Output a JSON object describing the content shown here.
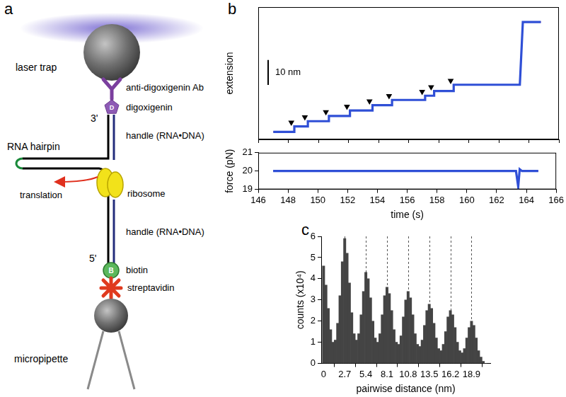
{
  "panel_labels": [
    "a",
    "b",
    "c"
  ],
  "diagram": {
    "labels": {
      "laser_trap": "laser trap",
      "antibody": "anti-digoxigenin Ab",
      "digoxigenin": "digoxigenin",
      "digoxigenin_mark": "D",
      "end_3": "3'",
      "handle_top": "handle (RNA•DNA)",
      "hairpin": "RNA hairpin",
      "translation": "translation",
      "ribosome": "ribosome",
      "handle_bottom": "handle (RNA•DNA)",
      "end_5": "5'",
      "biotin": "biotin",
      "biotin_mark": "B",
      "streptavidin": "streptavidin",
      "micropipette": "micropipette"
    }
  },
  "chart_data": [
    {
      "type": "line",
      "y_label": "extension",
      "xlim": [
        146,
        166
      ],
      "xticks": [
        146,
        148,
        150,
        152,
        154,
        156,
        158,
        160,
        162,
        164,
        166
      ],
      "ylim": [
        -3,
        50
      ],
      "tick_labels": false,
      "scale_bar": {
        "value": 10,
        "label": "10 nm"
      },
      "series": [
        {
          "color": "#2f4fd6",
          "x": [
            147.0,
            148.4,
            148.4,
            149.3,
            149.3,
            150.7,
            150.7,
            152.1,
            152.1,
            153.6,
            153.6,
            154.9,
            154.9,
            157.1,
            157.1,
            157.7,
            157.7,
            159.0,
            159.0,
            163.4,
            163.6,
            164.8
          ],
          "values": [
            0,
            0,
            2.2,
            2.2,
            4.3,
            4.3,
            6.4,
            6.4,
            8.6,
            8.6,
            10.7,
            10.7,
            12.8,
            12.8,
            14.5,
            14.5,
            16.4,
            16.4,
            18.9,
            18.9,
            44,
            44
          ]
        },
        {
          "color": "#e3262b",
          "x": [
            147.0,
            148.4,
            148.4,
            149.3,
            149.3,
            150.7,
            150.7,
            152.1,
            152.1,
            153.6,
            153.6,
            154.9,
            154.9,
            157.1,
            157.1,
            157.7,
            157.7,
            159.0,
            159.0,
            163.4,
            163.6,
            164.8
          ],
          "values": [
            0,
            0,
            2.2,
            2.2,
            4.3,
            4.3,
            6.4,
            6.4,
            8.6,
            8.6,
            10.7,
            10.7,
            12.8,
            12.8,
            14.5,
            14.5,
            16.4,
            16.4,
            18.9,
            18.9,
            44,
            44
          ]
        },
        {
          "type": "scatter",
          "marker": "triangle",
          "color": "#000000",
          "x": [
            148.2,
            149.1,
            150.5,
            151.9,
            153.4,
            154.7,
            156.9,
            157.5,
            158.8
          ],
          "values": [
            3.8,
            5.9,
            8.0,
            10.2,
            12.3,
            14.4,
            16.1,
            18.0,
            20.5
          ]
        }
      ]
    },
    {
      "type": "line",
      "x_label": "time (s)",
      "y_label": "force (pN)",
      "xlim": [
        146,
        166
      ],
      "xticks": [
        146,
        148,
        150,
        152,
        154,
        156,
        158,
        160,
        162,
        164,
        166
      ],
      "ylim": [
        19,
        21
      ],
      "yticks": [
        19,
        20,
        21
      ],
      "series": [
        {
          "color": "#2f4fd6",
          "x": [
            147.0,
            163.3,
            163.45,
            163.55,
            163.7,
            164.8
          ],
          "values": [
            20,
            20,
            19.15,
            20.1,
            20,
            20
          ]
        },
        {
          "color": "#e3262b",
          "x": [
            147.0,
            163.3,
            163.45,
            163.55,
            163.7,
            164.8
          ],
          "values": [
            20,
            20,
            19.3,
            20.05,
            20,
            20
          ]
        }
      ]
    },
    {
      "type": "histogram",
      "x_label": "pairwise distance (nm)",
      "y_label": "counts (x10⁴)",
      "color": "#444444",
      "grid": true,
      "xlim": [
        -0.3,
        21.3
      ],
      "xticks": [
        0,
        2.7,
        5.4,
        8.1,
        10.8,
        13.5,
        16.2,
        18.9
      ],
      "ylim": [
        0,
        6
      ],
      "yticks": [
        0,
        1,
        2,
        3,
        4,
        5,
        6
      ],
      "bins": [
        -0.15,
        0.15,
        0.45,
        0.75,
        1.05,
        1.35,
        1.65,
        1.95,
        2.25,
        2.55,
        2.85,
        3.15,
        3.45,
        3.75,
        4.05,
        4.35,
        4.65,
        4.95,
        5.25,
        5.55,
        5.85,
        6.15,
        6.45,
        6.75,
        7.05,
        7.35,
        7.65,
        7.95,
        8.25,
        8.55,
        8.85,
        9.15,
        9.45,
        9.75,
        10.05,
        10.35,
        10.65,
        10.95,
        11.25,
        11.55,
        11.85,
        12.15,
        12.45,
        12.75,
        13.05,
        13.35,
        13.65,
        13.95,
        14.25,
        14.55,
        14.85,
        15.15,
        15.45,
        15.75,
        16.05,
        16.35,
        16.65,
        16.95,
        17.25,
        17.55,
        17.85,
        18.15,
        18.45,
        18.75,
        19.05,
        19.35,
        19.65,
        19.95,
        20.25,
        20.55,
        20.85
      ],
      "counts": [
        4.6,
        3.7,
        2.6,
        1.6,
        1.0,
        1.1,
        1.9,
        3.2,
        4.8,
        5.9,
        5.2,
        3.8,
        2.4,
        1.4,
        1.1,
        1.4,
        2.3,
        3.4,
        4.3,
        4.0,
        3.1,
        2.0,
        1.2,
        1.0,
        1.4,
        2.3,
        3.2,
        3.6,
        3.3,
        2.5,
        1.6,
        1.0,
        0.9,
        1.3,
        2.2,
        3.0,
        3.4,
        3.1,
        2.3,
        1.4,
        0.9,
        0.8,
        1.1,
        1.8,
        2.5,
        2.8,
        2.6,
        1.9,
        1.2,
        0.7,
        0.6,
        0.9,
        1.5,
        2.2,
        2.5,
        2.3,
        1.7,
        1.0,
        0.6,
        0.5,
        0.7,
        1.2,
        1.7,
        2.0,
        1.8,
        1.2,
        0.6,
        0.3,
        0.1,
        0.0
      ]
    }
  ]
}
